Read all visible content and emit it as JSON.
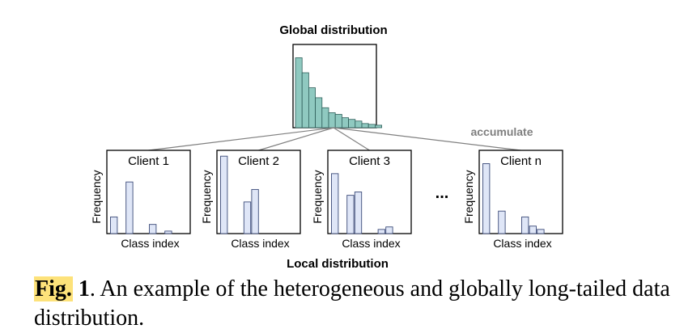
{
  "global": {
    "title": "Global distribution",
    "bars": [
      0.84,
      0.66,
      0.48,
      0.36,
      0.24,
      0.18,
      0.16,
      0.12,
      0.1,
      0.08,
      0.05,
      0.04,
      0.03
    ],
    "color": "#8fc9c0"
  },
  "accumulate_label": "accumulate",
  "local_label": "Local distribution",
  "axis": {
    "ylabel": "Frequency",
    "xlabel": "Class index"
  },
  "ellipsis": "...",
  "client_bar_color": "#dfe6f7",
  "clients": [
    {
      "name": "Client 1",
      "bars": [
        0.2,
        0,
        0.62,
        0,
        0,
        0.11,
        0,
        0.03
      ]
    },
    {
      "name": "Client 2",
      "bars": [
        0.93,
        0,
        0,
        0.38,
        0.53,
        0,
        0,
        0
      ]
    },
    {
      "name": "Client 3",
      "bars": [
        0.72,
        0,
        0.46,
        0.5,
        0,
        0,
        0.05,
        0.08
      ]
    },
    {
      "name": "Client n",
      "bars": [
        0.84,
        0,
        0.27,
        0,
        0,
        0.2,
        0.09,
        0.05
      ]
    }
  ],
  "caption": {
    "label": "Fig.",
    "number": "1",
    "text": ". An example of the heterogeneous and globally long-tailed data distribution."
  }
}
